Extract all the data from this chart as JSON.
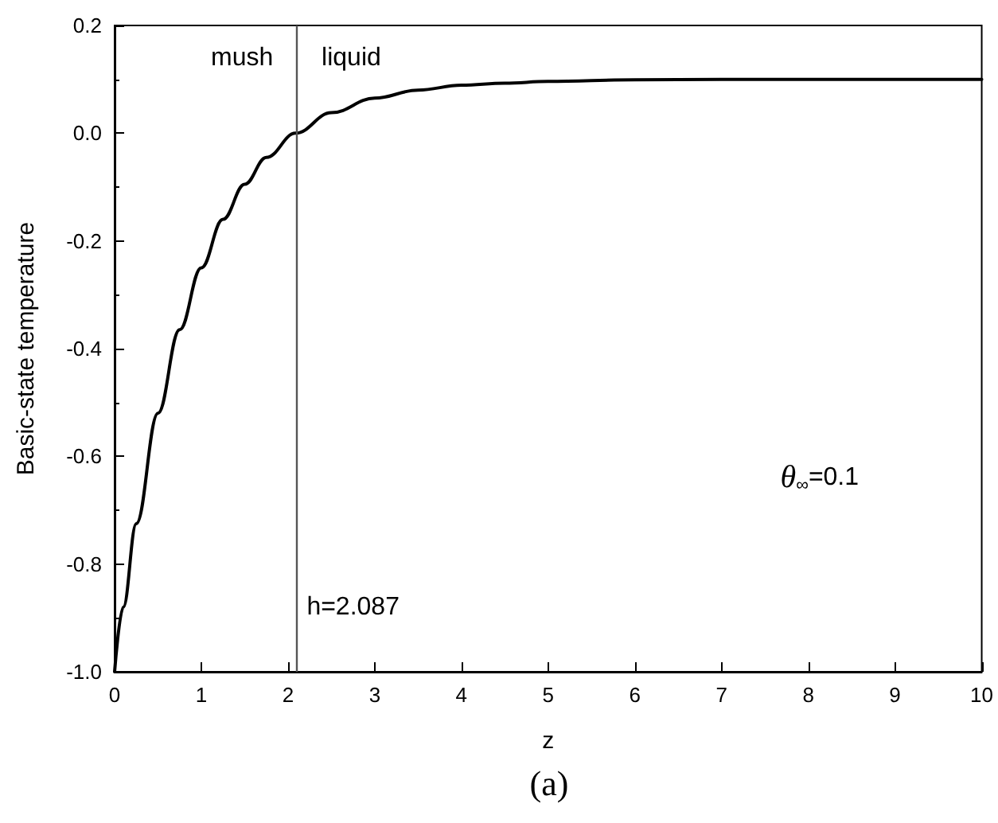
{
  "chart_data": {
    "type": "line",
    "xlabel": "z",
    "ylabel": "Basic-state temperature",
    "x": [
      0,
      0.1,
      0.25,
      0.5,
      0.75,
      1,
      1.25,
      1.5,
      1.75,
      2.087,
      2.5,
      3,
      3.5,
      4,
      4.5,
      5,
      6,
      7,
      8,
      10
    ],
    "series": [
      {
        "color": "#000000",
        "values": [
          -1,
          -0.88,
          -0.725,
          -0.52,
          -0.365,
          -0.25,
          -0.16,
          -0.095,
          -0.045,
          0,
          0.038,
          0.065,
          0.08,
          0.089,
          0.093,
          0.096,
          0.099,
          0.1,
          0.1,
          0.1
        ]
      }
    ],
    "xlim": [
      0,
      10
    ],
    "xticks": [
      0,
      1,
      2,
      3,
      4,
      5,
      6,
      7,
      8,
      9,
      10
    ],
    "ylim": [
      -1.0,
      0.2
    ],
    "yticks": [
      {
        "value": -1.0,
        "label": "-1.0"
      },
      {
        "value": -0.8,
        "label": "-0.8"
      },
      {
        "value": -0.6,
        "label": "-0.6"
      },
      {
        "value": -0.4,
        "label": "-0.4"
      },
      {
        "value": -0.2,
        "label": "-0.2"
      },
      {
        "value": 0,
        "label": "0.0"
      },
      {
        "value": 0.2,
        "label": "0.2"
      }
    ],
    "ref_lines": [
      {
        "axis": "x",
        "value": 2.087,
        "label": "h=2.087",
        "color": "#555555"
      }
    ],
    "annotations": [
      "mush",
      "liquid",
      "θ$_{∞}$=0.1",
      "(a)"
    ],
    "grid": false,
    "marker": "none",
    "line_style": "solid"
  }
}
